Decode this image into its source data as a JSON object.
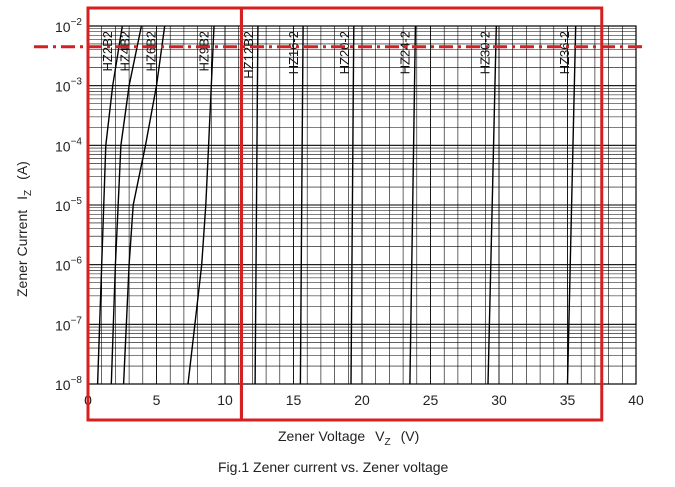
{
  "chart_data": {
    "type": "line",
    "title": "",
    "caption": "Fig.1   Zener current vs. Zener voltage",
    "xlabel": {
      "text": "Zener Voltage",
      "symbol": "V",
      "sub": "Z",
      "unit": "(V)"
    },
    "ylabel": {
      "text": "Zener Current",
      "symbol": "I",
      "sub": "Z",
      "unit": "(A)"
    },
    "x_ticks": [
      "0",
      "5",
      "10",
      "15",
      "20",
      "25",
      "30",
      "35",
      "40"
    ],
    "y_ticks": [
      {
        "base": "10",
        "exp": "−8",
        "value": 1e-08
      },
      {
        "base": "10",
        "exp": "−7",
        "value": 1e-07
      },
      {
        "base": "10",
        "exp": "−6",
        "value": 1e-06
      },
      {
        "base": "10",
        "exp": "−5",
        "value": 1e-05
      },
      {
        "base": "10",
        "exp": "−4",
        "value": 0.0001
      },
      {
        "base": "10",
        "exp": "−3",
        "value": 0.001
      },
      {
        "base": "10",
        "exp": "−2",
        "value": 0.01
      }
    ],
    "xlim": [
      0,
      40
    ],
    "ylim": [
      1e-08,
      0.01
    ],
    "y_scale": "log",
    "grid": true,
    "series": [
      {
        "name": "HZ2B2",
        "points": [
          [
            0.7,
            1e-08
          ],
          [
            1.0,
            1e-06
          ],
          [
            1.3,
            0.0001
          ],
          [
            1.8,
            0.001
          ],
          [
            2.5,
            0.01
          ]
        ]
      },
      {
        "name": "HZ4B2",
        "points": [
          [
            1.7,
            1e-08
          ],
          [
            2.0,
            1e-06
          ],
          [
            2.4,
            0.0001
          ],
          [
            3.0,
            0.001
          ],
          [
            3.9,
            0.01
          ]
        ]
      },
      {
        "name": "HZ6B2",
        "points": [
          [
            2.6,
            1e-08
          ],
          [
            3.0,
            1e-06
          ],
          [
            3.3,
            1e-05
          ],
          [
            4.2,
            0.0001
          ],
          [
            5.0,
            0.001
          ],
          [
            5.6,
            0.01
          ]
        ]
      },
      {
        "name": "HZ9B2",
        "points": [
          [
            7.3,
            1e-08
          ],
          [
            7.8,
            1e-07
          ],
          [
            8.3,
            1e-06
          ],
          [
            8.6,
            1e-05
          ],
          [
            8.8,
            0.0001
          ],
          [
            9.0,
            0.001
          ],
          [
            9.2,
            0.01
          ]
        ]
      },
      {
        "name": "HZ12B2",
        "points": [
          [
            12.2,
            1e-08
          ],
          [
            12.3,
            1e-05
          ],
          [
            12.4,
            0.01
          ]
        ]
      },
      {
        "name": "HZ16-2",
        "points": [
          [
            15.5,
            1e-08
          ],
          [
            15.6,
            1e-05
          ],
          [
            15.7,
            0.01
          ]
        ]
      },
      {
        "name": "HZ20-2",
        "points": [
          [
            19.2,
            1e-08
          ],
          [
            19.3,
            1e-05
          ],
          [
            19.4,
            0.01
          ]
        ]
      },
      {
        "name": "HZ24-2",
        "points": [
          [
            23.5,
            1e-08
          ],
          [
            23.7,
            1e-05
          ],
          [
            23.9,
            0.01
          ]
        ]
      },
      {
        "name": "HZ30-2",
        "points": [
          [
            29.2,
            1e-08
          ],
          [
            29.5,
            1e-05
          ],
          [
            29.8,
            0.01
          ]
        ]
      },
      {
        "name": "HZ36-2",
        "points": [
          [
            35.0,
            1e-08
          ],
          [
            35.3,
            1e-05
          ],
          [
            35.6,
            0.01
          ]
        ]
      }
    ],
    "annotations": [
      {
        "type": "rect",
        "color": "#d42020",
        "x": [
          0,
          11.2
        ],
        "y": [
          1e-08,
          0.01
        ]
      },
      {
        "type": "rect",
        "color": "#d42020",
        "x": [
          11.2,
          37.5
        ],
        "y": [
          1e-08,
          0.01
        ]
      },
      {
        "type": "hline",
        "style": "dash-dot",
        "color": "#d42020",
        "y": 0.0045
      }
    ]
  }
}
